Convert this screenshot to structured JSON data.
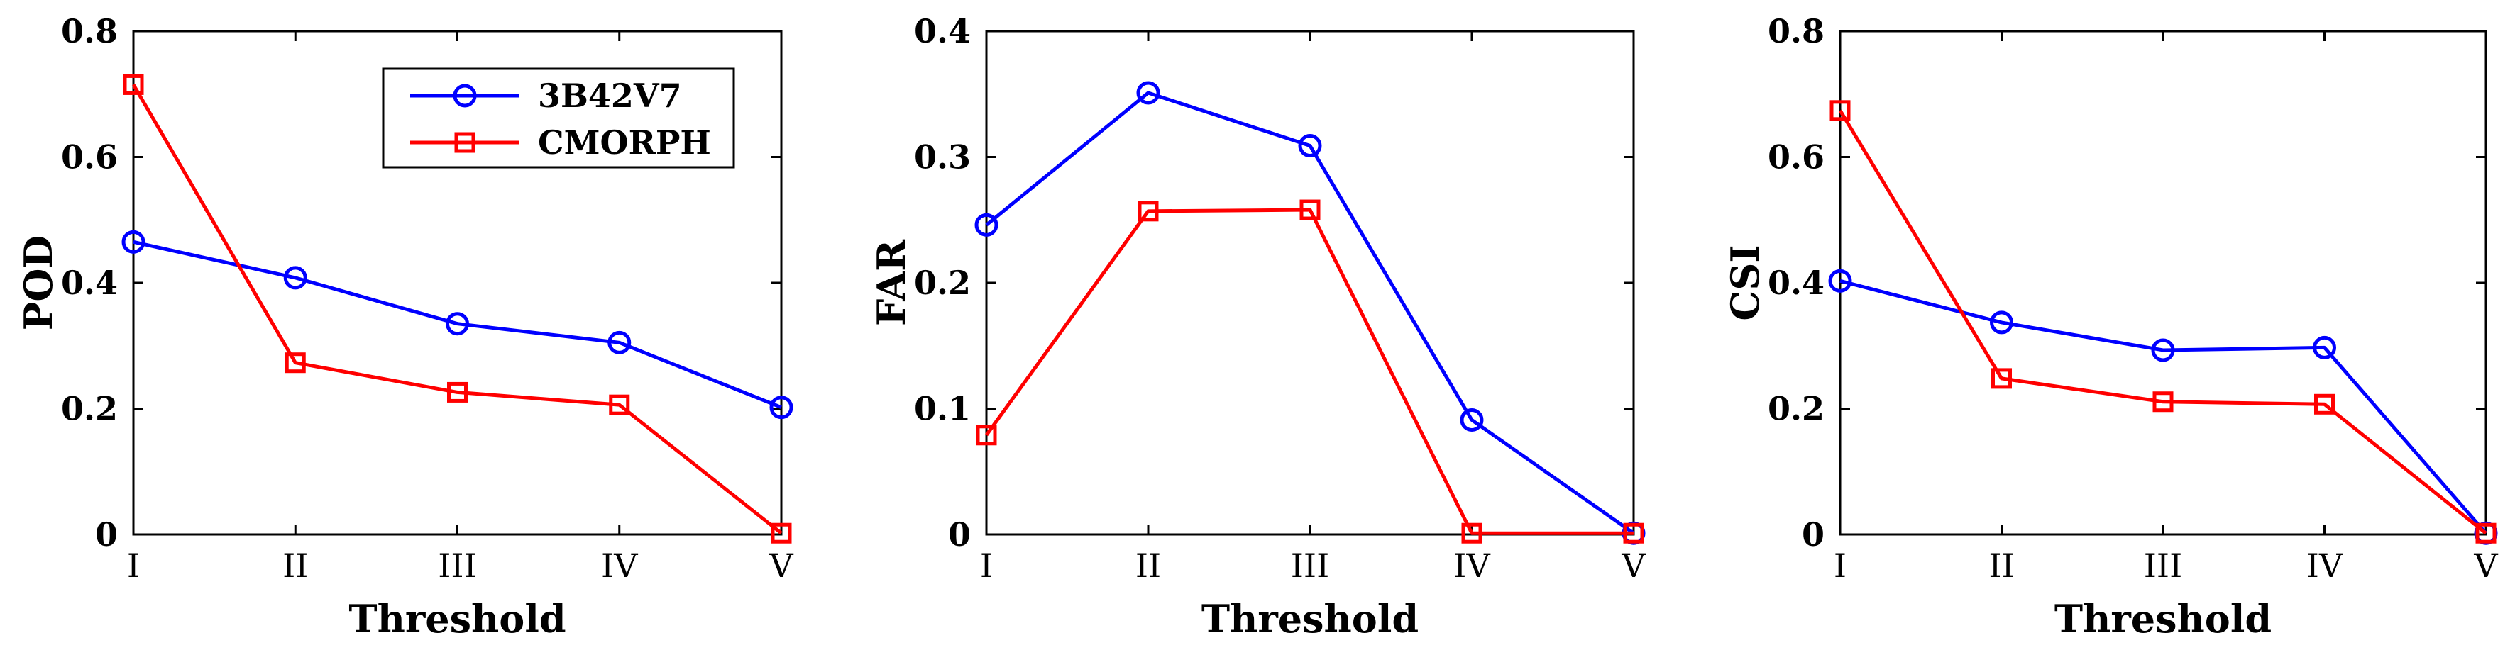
{
  "chart_data": [
    {
      "type": "line",
      "categories": [
        "I",
        "II",
        "III",
        "IV",
        "V"
      ],
      "xlabel": "Threshold",
      "ylabel": "POD",
      "ylim": [
        0,
        0.8
      ],
      "yticks": [
        "0",
        "0.2",
        "0.4",
        "0.6",
        "0.8"
      ],
      "legend": "top-right",
      "series": [
        {
          "name": "3B42V7",
          "color": "#0000ff",
          "marker": "circle",
          "values": [
            0.465,
            0.408,
            0.335,
            0.305,
            0.202
          ]
        },
        {
          "name": "CMORPH",
          "color": "#ff0000",
          "marker": "square",
          "values": [
            0.715,
            0.273,
            0.226,
            0.206,
            0.002
          ]
        }
      ]
    },
    {
      "type": "line",
      "categories": [
        "I",
        "II",
        "III",
        "IV",
        "V"
      ],
      "xlabel": "Threshold",
      "ylabel": "FAR",
      "ylim": [
        0,
        0.4
      ],
      "yticks": [
        "0",
        "0.1",
        "0.2",
        "0.3",
        "0.4"
      ],
      "series": [
        {
          "name": "3B42V7",
          "color": "#0000ff",
          "marker": "circle",
          "values": [
            0.246,
            0.351,
            0.309,
            0.091,
            0.001
          ]
        },
        {
          "name": "CMORPH",
          "color": "#ff0000",
          "marker": "square",
          "values": [
            0.079,
            0.257,
            0.258,
            0.001,
            0.001
          ]
        }
      ]
    },
    {
      "type": "line",
      "categories": [
        "I",
        "II",
        "III",
        "IV",
        "V"
      ],
      "xlabel": "Threshold",
      "ylabel": "CSI",
      "ylim": [
        0,
        0.8
      ],
      "yticks": [
        "0",
        "0.2",
        "0.4",
        "0.6",
        "0.8"
      ],
      "series": [
        {
          "name": "3B42V7",
          "color": "#0000ff",
          "marker": "circle",
          "values": [
            0.403,
            0.337,
            0.293,
            0.297,
            0.002
          ]
        },
        {
          "name": "CMORPH",
          "color": "#ff0000",
          "marker": "square",
          "values": [
            0.674,
            0.248,
            0.211,
            0.207,
            0.002
          ]
        }
      ]
    }
  ]
}
